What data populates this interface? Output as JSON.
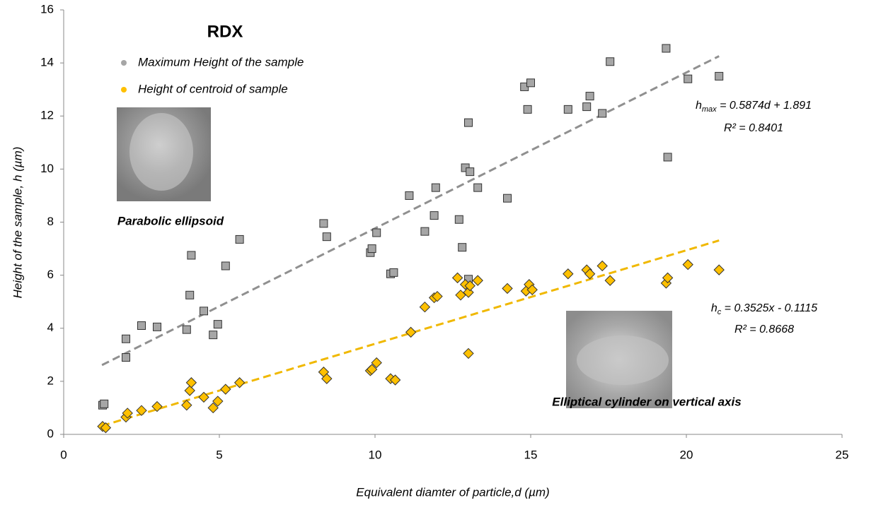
{
  "chart_data": {
    "type": "scatter",
    "title": "RDX",
    "x_label": "Equivalent diamter of particle,d (µm)",
    "y_label": "Height of the sample, h (µm)",
    "xlim": [
      0,
      25
    ],
    "xticks": [
      0,
      5,
      10,
      15,
      20,
      25
    ],
    "ylim": [
      0,
      16
    ],
    "yticks": [
      0,
      2,
      4,
      6,
      8,
      10,
      12,
      14,
      16
    ],
    "legend": "upper left",
    "annotations": [
      "Parabolic ellipsoid",
      "Elliptical cylinder on vertical axis"
    ],
    "series": [
      {
        "name": "Maximum Height of the sample",
        "color": "#a6a6a6",
        "marker": "square",
        "x": [
          1.25,
          1.3,
          2.0,
          2.0,
          2.5,
          3.0,
          3.95,
          4.05,
          4.1,
          4.5,
          4.8,
          4.95,
          5.2,
          5.65,
          8.35,
          8.45,
          9.85,
          9.9,
          10.05,
          10.5,
          10.6,
          11.1,
          11.6,
          11.9,
          11.95,
          12.7,
          12.8,
          12.9,
          13.0,
          13.0,
          13.05,
          13.3,
          14.25,
          14.8,
          14.9,
          15.0,
          16.2,
          16.8,
          16.9,
          17.3,
          17.55,
          19.35,
          19.4,
          20.05,
          21.05
        ],
        "values": [
          1.1,
          1.15,
          3.6,
          2.9,
          4.1,
          4.05,
          3.95,
          5.25,
          6.75,
          4.65,
          3.75,
          4.15,
          6.35,
          7.35,
          7.95,
          7.45,
          6.85,
          7.0,
          7.6,
          6.05,
          6.1,
          9.0,
          7.65,
          8.25,
          9.3,
          8.1,
          7.05,
          10.05,
          5.85,
          11.75,
          9.9,
          9.3,
          8.9,
          13.1,
          12.25,
          13.25,
          12.25,
          12.35,
          12.75,
          12.1,
          14.05,
          14.55,
          10.45,
          13.4,
          13.5
        ],
        "trend": {
          "x": [
            1.23,
            21.05
          ],
          "values": [
            2.613,
            14.256
          ]
        },
        "equation": {
          "symbol": "h",
          "subscript": "max",
          "rest": " = 0.5874d + 1.891",
          "r2": "R² = 0.8401"
        }
      },
      {
        "name": "Height of centroid of sample",
        "color": "#ffc000",
        "marker": "diamond",
        "x": [
          1.25,
          1.35,
          2.0,
          2.05,
          2.5,
          3.0,
          3.95,
          4.05,
          4.1,
          4.5,
          4.8,
          4.95,
          5.2,
          5.65,
          8.35,
          8.45,
          9.85,
          9.9,
          10.05,
          10.5,
          10.65,
          11.15,
          11.6,
          11.9,
          12.0,
          12.65,
          12.75,
          12.9,
          13.0,
          13.0,
          13.05,
          13.3,
          14.25,
          14.85,
          14.95,
          15.05,
          16.2,
          16.8,
          16.9,
          17.3,
          17.55,
          19.35,
          19.4,
          20.05,
          21.05
        ],
        "values": [
          0.3,
          0.25,
          0.65,
          0.8,
          0.9,
          1.05,
          1.1,
          1.65,
          1.95,
          1.4,
          1.0,
          1.25,
          1.7,
          1.95,
          2.35,
          2.1,
          2.4,
          2.45,
          2.7,
          2.1,
          2.05,
          3.85,
          4.8,
          5.15,
          5.2,
          5.9,
          5.25,
          5.65,
          3.05,
          5.35,
          5.6,
          5.8,
          5.5,
          5.4,
          5.65,
          5.45,
          6.05,
          6.2,
          6.05,
          6.35,
          5.8,
          5.7,
          5.9,
          6.4,
          6.2
        ],
        "trend": {
          "x": [
            1.23,
            21.05
          ],
          "values": [
            0.322,
            7.309
          ]
        },
        "equation": {
          "symbol": "h",
          "subscript": "c",
          "rest": " = 0.3525x - 0.1115",
          "r2": "R² = 0.8668"
        }
      }
    ]
  }
}
